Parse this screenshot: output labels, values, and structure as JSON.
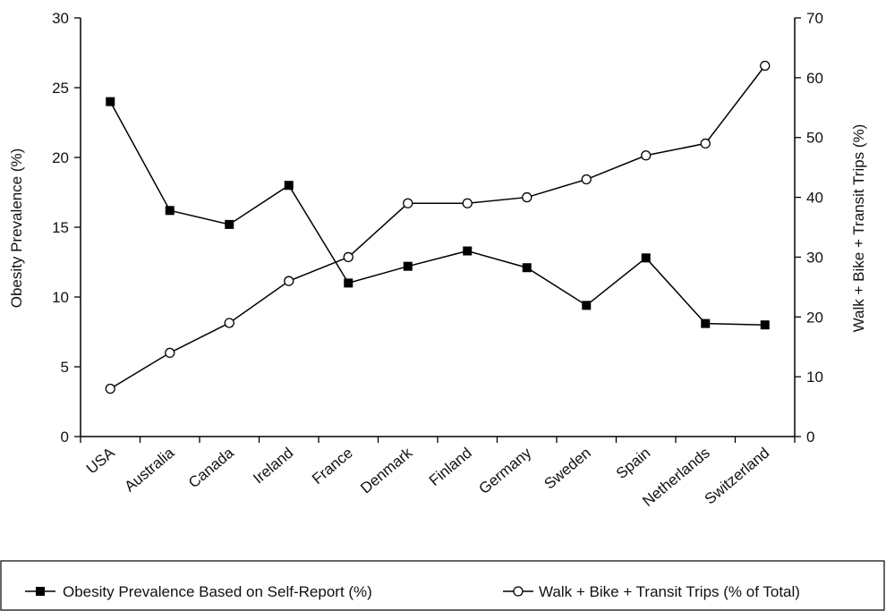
{
  "chart_data": {
    "type": "line",
    "categories": [
      "USA",
      "Australia",
      "Canada",
      "Ireland",
      "France",
      "Denmark",
      "Finland",
      "Germany",
      "Sweden",
      "Spain",
      "Netherlands",
      "Switzerland"
    ],
    "series": [
      {
        "name": "Obesity Prevalence Based on Self-Report (%)",
        "axis": "left",
        "marker": "filled-square",
        "values": [
          24.0,
          16.2,
          15.2,
          18.0,
          11.0,
          12.2,
          13.3,
          12.1,
          9.4,
          12.8,
          8.1,
          8.0
        ]
      },
      {
        "name": "Walk + Bike + Transit Trips (% of Total)",
        "axis": "right",
        "marker": "open-circle",
        "values": [
          8,
          14,
          19,
          26,
          30,
          39,
          39,
          40,
          43,
          47,
          49,
          62
        ]
      }
    ],
    "ylabel_left": "Obesity Prevalence (%)",
    "ylabel_right": "Walk + Bike + Transit Trips (%)",
    "ylim_left": [
      0,
      30
    ],
    "ylim_right": [
      0,
      70
    ],
    "yticks_left": [
      0,
      5,
      10,
      15,
      20,
      25,
      30
    ],
    "yticks_right": [
      0,
      10,
      20,
      30,
      40,
      50,
      60,
      70
    ],
    "grid": false,
    "legend_position": "bottom",
    "colors": {
      "line": "#000000",
      "marker_fill": "#000000",
      "open_marker_fill": "#ffffff"
    }
  }
}
